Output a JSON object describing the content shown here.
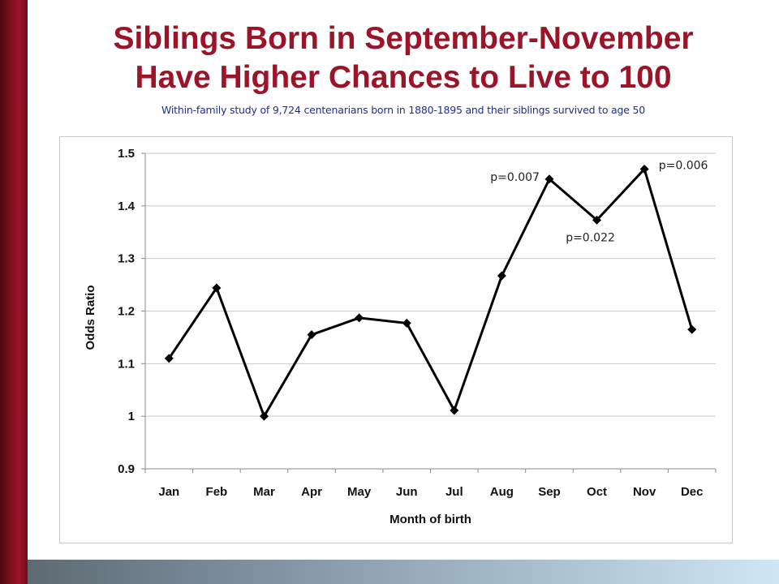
{
  "slide": {
    "title_line1": "Siblings Born in September-November",
    "title_line2": "Have Higher Chances to Live to 100",
    "subtitle": "Within-family study of 9,724 centenarians born in 1880-1895 and their siblings  survived to age 50",
    "colors": {
      "title": "#9b1428",
      "subtitle": "#1f2e8c",
      "side_bar": "#7a0f1e"
    }
  },
  "chart_data": {
    "type": "line",
    "title": "",
    "xlabel": "Month of birth",
    "ylabel": "Odds Ratio",
    "categories": [
      "Jan",
      "Feb",
      "Mar",
      "Apr",
      "May",
      "Jun",
      "Jul",
      "Aug",
      "Sep",
      "Oct",
      "Nov",
      "Dec"
    ],
    "series": [
      {
        "values": [
          1.11,
          1.244,
          1.0,
          1.155,
          1.187,
          1.177,
          1.011,
          1.267,
          1.451,
          1.373,
          1.47,
          1.165
        ],
        "color": "#000000",
        "marker": "diamond"
      }
    ],
    "ylim": [
      0.9,
      1.5
    ],
    "yticks": [
      "0.9",
      "1",
      "1.1",
      "1.2",
      "1.3",
      "1.4",
      "1.5"
    ],
    "grid": true,
    "legend": "none",
    "annotations": [
      {
        "text": "p=0.007",
        "category": "Sep"
      },
      {
        "text": "p=0.022",
        "category": "Oct"
      },
      {
        "text": "p=0.006",
        "category": "Nov"
      }
    ]
  }
}
